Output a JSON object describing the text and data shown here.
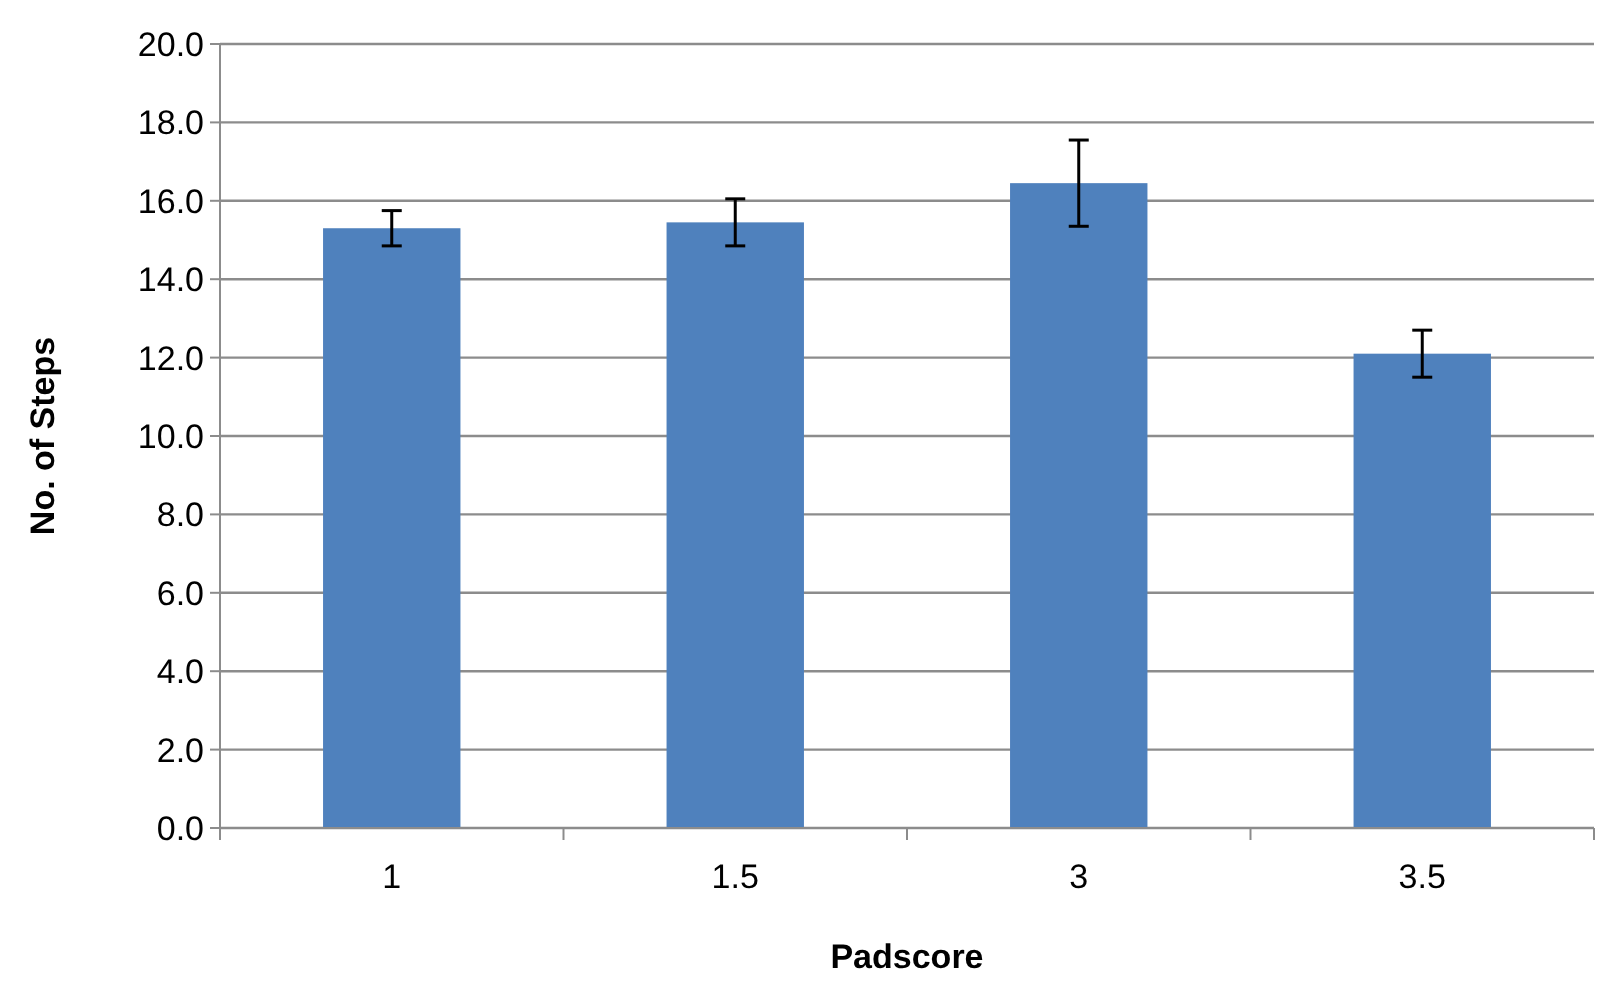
{
  "chart_data": {
    "type": "bar",
    "xlabel": "Padscore",
    "ylabel": "No. of Steps",
    "categories": [
      "1",
      "1.5",
      "3",
      "3.5"
    ],
    "values": [
      15.3,
      15.45,
      16.45,
      12.1
    ],
    "errors": [
      0.45,
      0.6,
      1.1,
      0.6
    ],
    "color": "#4f81bd",
    "ylim": [
      0,
      20
    ],
    "yticks": [
      {
        "value": 0,
        "label": "0.0"
      },
      {
        "value": 2,
        "label": "2.0"
      },
      {
        "value": 4,
        "label": "4.0"
      },
      {
        "value": 6,
        "label": "6.0"
      },
      {
        "value": 8,
        "label": "8.0"
      },
      {
        "value": 10,
        "label": "10.0"
      },
      {
        "value": 12,
        "label": "12.0"
      },
      {
        "value": 14,
        "label": "14.0"
      },
      {
        "value": 16,
        "label": "16.0"
      },
      {
        "value": 18,
        "label": "18.0"
      },
      {
        "value": 20,
        "label": "20.0"
      }
    ],
    "grid": "y"
  }
}
